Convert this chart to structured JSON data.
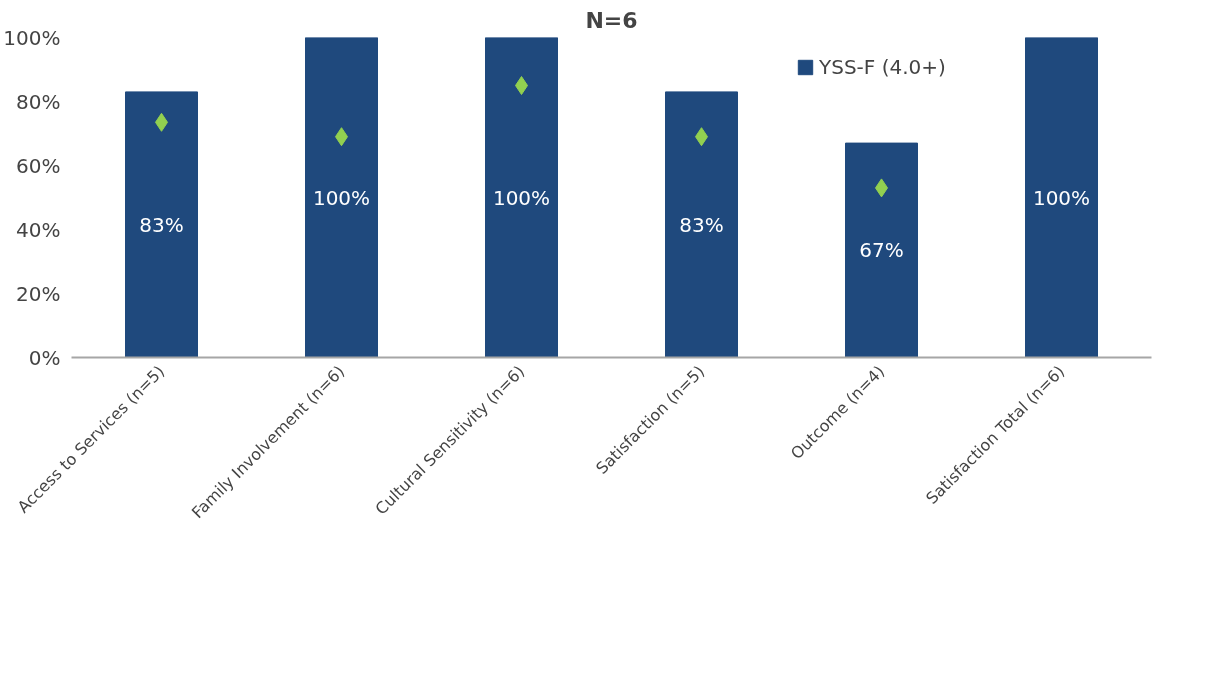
{
  "chart_data": {
    "type": "bar",
    "title": "N=6",
    "categories": [
      "Access to Services (n=5)",
      "Family Involvement (n=6)",
      "Cultural Sensitivity (n=6)",
      "Satisfaction (n=5)",
      "Outcome (n=4)",
      "Satisfaction Total (n=6)"
    ],
    "series": [
      {
        "name": "YSS-F (4.0+)",
        "color": "#1f497d",
        "values": [
          83,
          100,
          100,
          83,
          67,
          100
        ],
        "value_labels": [
          "83%",
          "100%",
          "100%",
          "83%",
          "67%",
          "100%"
        ]
      },
      {
        "type": "scatter",
        "marker": "diamond",
        "color": "#92d050",
        "values": [
          73.5,
          69,
          85,
          69,
          53,
          null
        ]
      }
    ],
    "ylim": [
      0,
      100
    ],
    "yticks": [
      {
        "value": 0,
        "label": "0%"
      },
      {
        "value": 20,
        "label": "20%"
      },
      {
        "value": 40,
        "label": "40%"
      },
      {
        "value": 60,
        "label": "60%"
      },
      {
        "value": 80,
        "label": "80%"
      },
      {
        "value": 100,
        "label": "100%"
      }
    ],
    "grid": false,
    "legend": "top right"
  }
}
